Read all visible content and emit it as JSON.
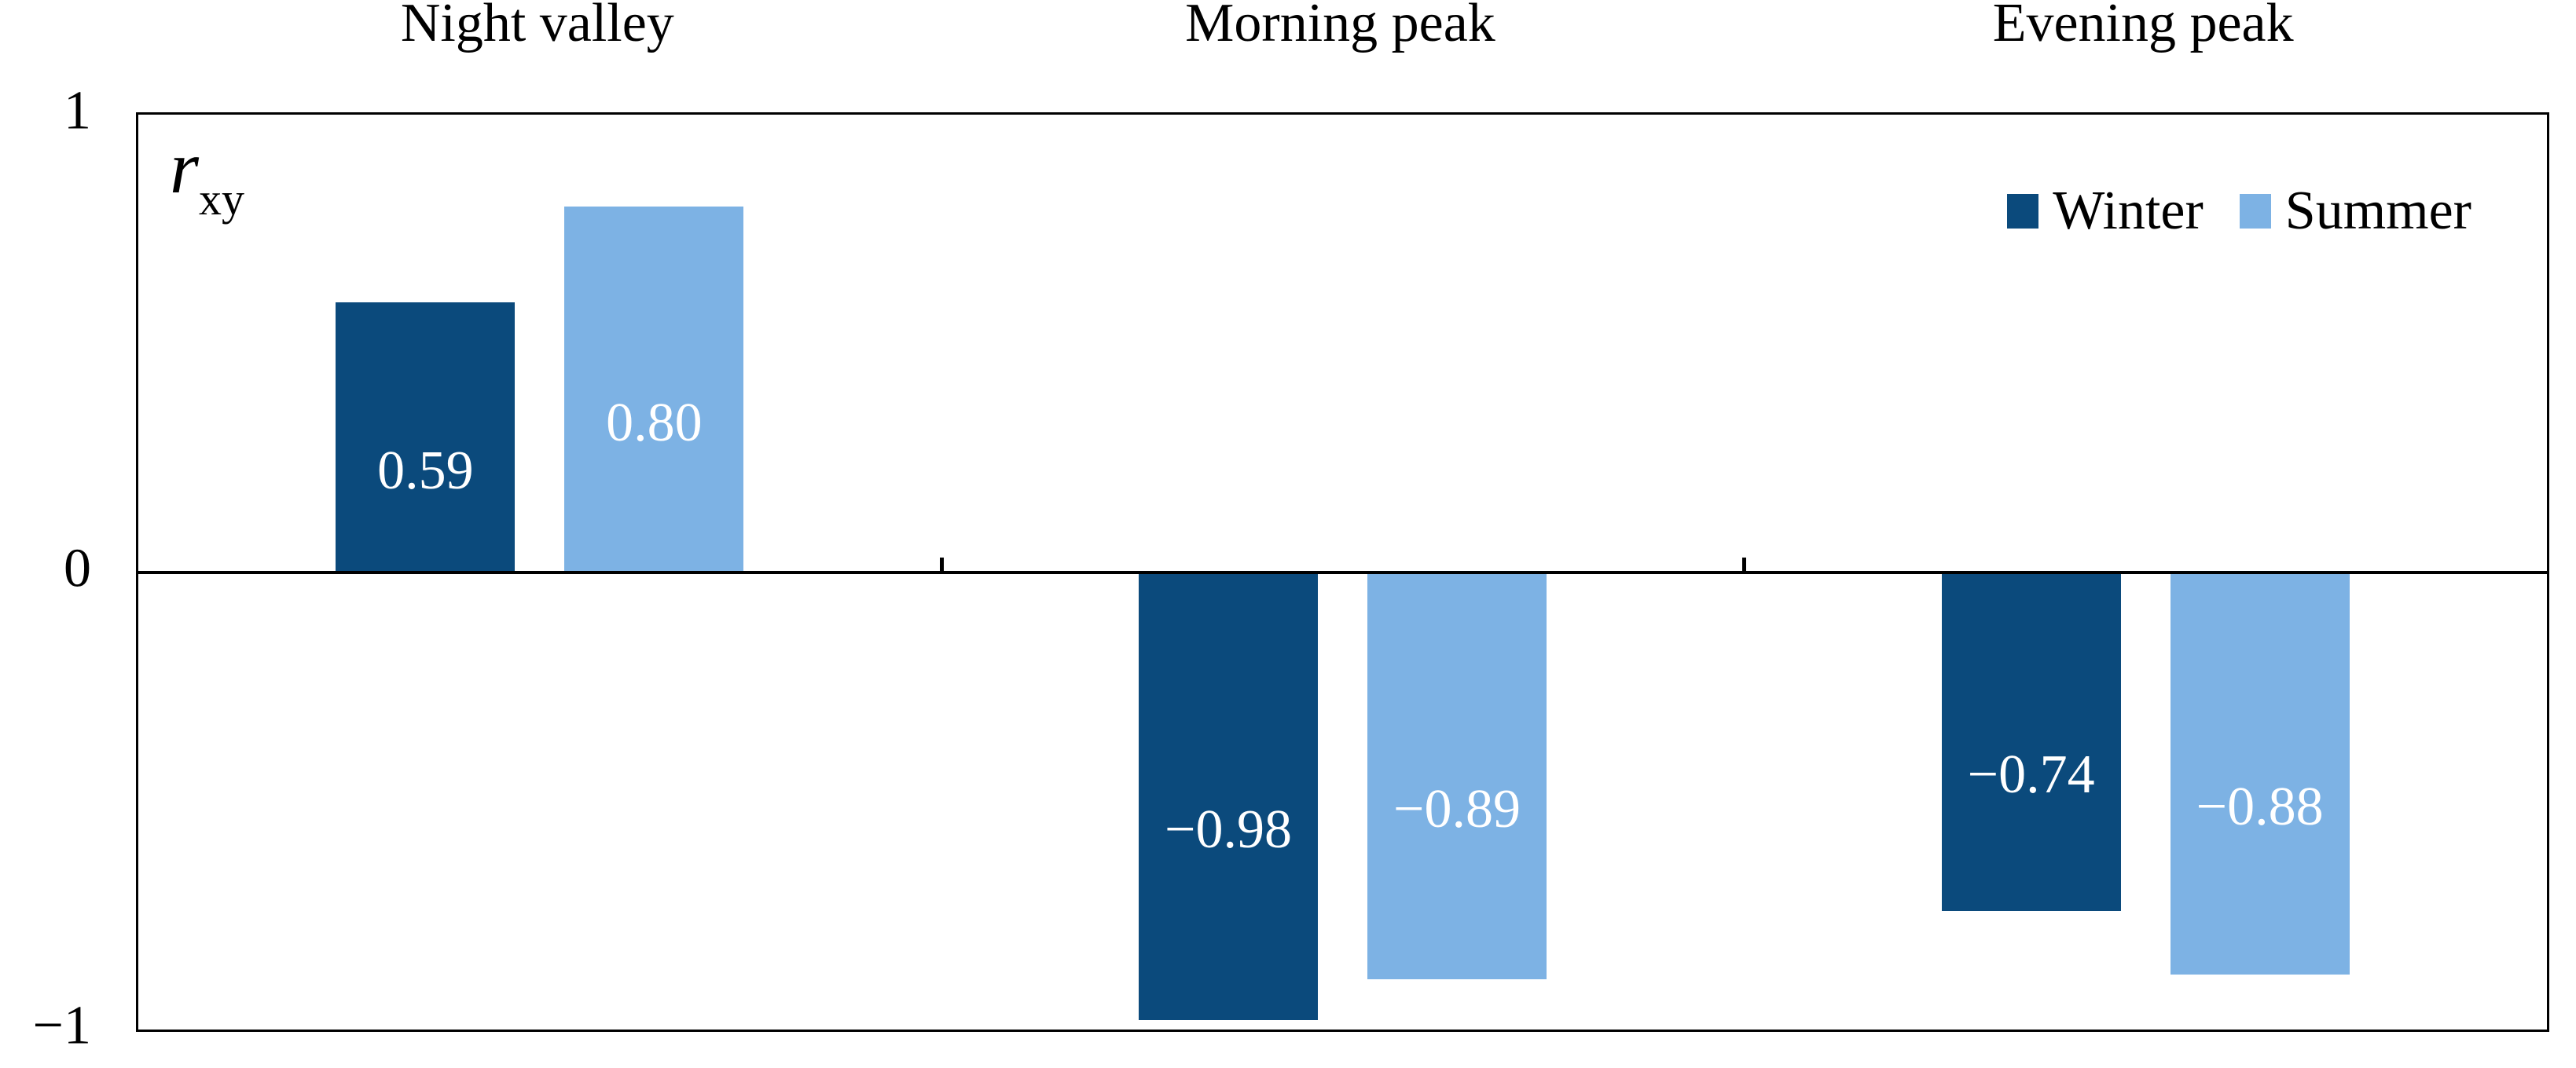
{
  "chart_data": {
    "type": "bar",
    "title": "",
    "axis_label_base": "r",
    "axis_label_sub": "xy",
    "categories": [
      "Night valley",
      "Morning peak",
      "Evening peak"
    ],
    "series": [
      {
        "name": "Winter",
        "color": "#0B4A7C",
        "values": [
          0.59,
          -0.98,
          -0.74
        ],
        "labels": [
          "0.59",
          "−0.98",
          "−0.74"
        ]
      },
      {
        "name": "Summer",
        "color": "#7DB2E4",
        "values": [
          0.8,
          -0.89,
          -0.88
        ],
        "labels": [
          "0.80",
          "−0.89",
          "−0.88"
        ]
      }
    ],
    "y_ticks": [
      {
        "value": 1,
        "label": "1"
      },
      {
        "value": 0,
        "label": "0"
      },
      {
        "value": -1,
        "label": "−1"
      }
    ],
    "ylim": [
      -1,
      1
    ],
    "xlabel": "",
    "ylabel": "r_xy",
    "grid": false,
    "legend_position": "top-right",
    "value_label_color": "#ffffff",
    "axis_color": "#000000"
  }
}
